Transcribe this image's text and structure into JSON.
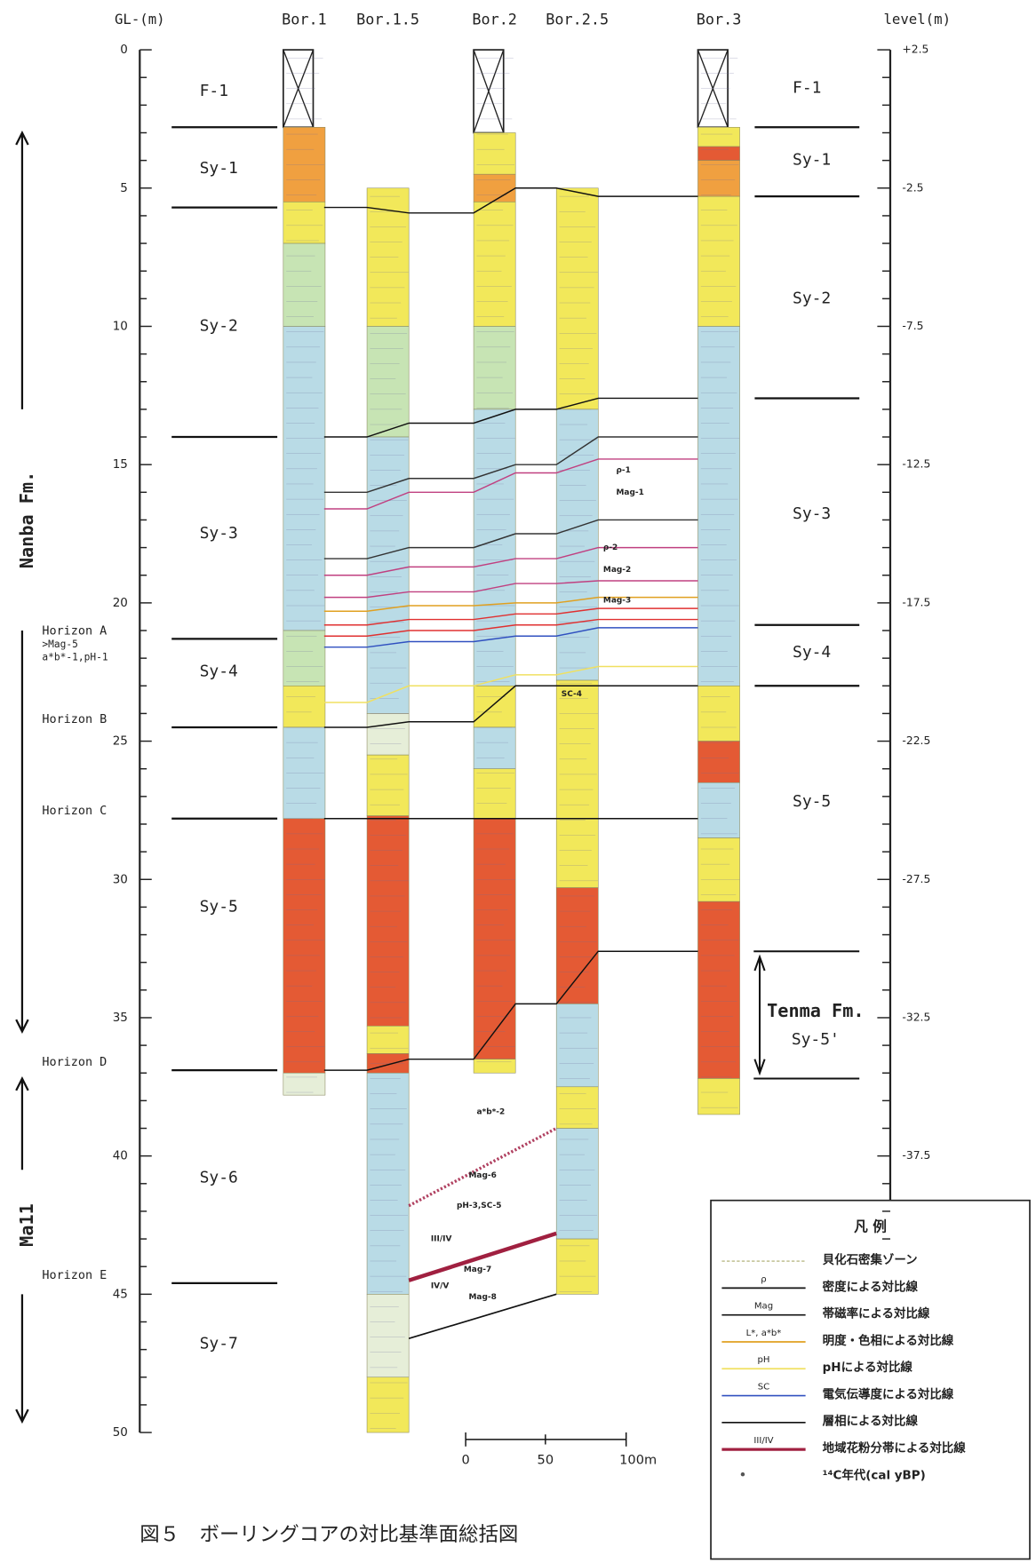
{
  "header": {
    "gl_axis_label": "GL-(m)",
    "level_axis_label": "level(m)",
    "boreholes": [
      "Bor.1",
      "Bor.1.5",
      "Bor.2",
      "Bor.2.5",
      "Bor.3"
    ]
  },
  "depth_ticks": [
    0,
    5,
    10,
    15,
    20,
    25,
    30,
    35,
    40,
    45,
    50
  ],
  "level_ticks": [
    "+2.5",
    "-2.5",
    "-7.5",
    "-12.5",
    "-17.5",
    "-22.5",
    "-27.5",
    "-32.5",
    "-37.5"
  ],
  "formations": [
    "Nanba Fm.",
    "Ma11"
  ],
  "units_left": [
    "F-1",
    "Sy-1",
    "Sy-2",
    "Sy-3",
    "Sy-4",
    "Sy-5",
    "Sy-6",
    "Sy-7"
  ],
  "units_right": [
    "F-1",
    "Sy-1",
    "Sy-2",
    "Sy-3",
    "Sy-4",
    "Sy-5"
  ],
  "horizons": [
    {
      "label": "Horizon A",
      "notes": [
        ">Mag-5",
        "a*b*-1,pH-1"
      ]
    },
    {
      "label": "Horizon B",
      "notes": []
    },
    {
      "label": "Horizon C",
      "notes": []
    },
    {
      "label": "Horizon D",
      "notes": []
    },
    {
      "label": "Horizon E",
      "notes": []
    }
  ],
  "tenma": {
    "label": "Tenma Fm.",
    "unit": "Sy-5'"
  },
  "correlation_labels": [
    "ρ-1",
    "Mag-1",
    "ρ-2",
    "Mag-2",
    "Mag-3",
    "SC-4",
    "a*b*-2",
    "Mag-6",
    "pH-3,SC-5",
    "III/IV",
    "Mag-7",
    "IV/V",
    "Mag-8"
  ],
  "scale_bar": [
    "0",
    "50",
    "100m"
  ],
  "legend": {
    "title": "凡 例",
    "items": [
      {
        "symbol": "",
        "text": "貝化石密集ゾーン"
      },
      {
        "symbol": "ρ",
        "text": "密度による対比線"
      },
      {
        "symbol": "Mag",
        "text": "帯磁率による対比線"
      },
      {
        "symbol": "L*, a*b*",
        "text": "明度・色相による対比線"
      },
      {
        "symbol": "pH",
        "text": "pHによる対比線"
      },
      {
        "symbol": "SC",
        "text": "電気伝導度による対比線"
      },
      {
        "symbol": "",
        "text": "層相による対比線"
      },
      {
        "symbol": "III/IV",
        "text": "地域花粉分帯による対比線"
      },
      {
        "symbol": "",
        "text": "¹⁴C年代(cal yBP)"
      }
    ]
  },
  "caption": "図５　ボーリングコアの対比基準面総括図"
}
